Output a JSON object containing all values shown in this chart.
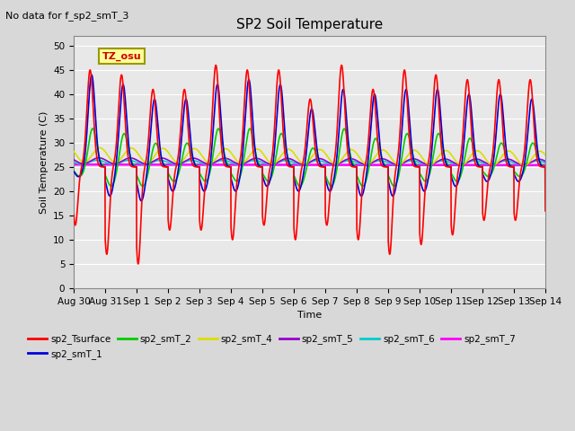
{
  "title": "SP2 Soil Temperature",
  "no_data_label": "No data for f_sp2_smT_3",
  "tz_label": "TZ_osu",
  "xlabel": "Time",
  "ylabel": "Soil Temperature (C)",
  "ylim": [
    0,
    52
  ],
  "yticks": [
    0,
    5,
    10,
    15,
    20,
    25,
    30,
    35,
    40,
    45,
    50
  ],
  "xlim": [
    0,
    15
  ],
  "colors": {
    "sp2_Tsurface": "#FF0000",
    "sp2_smT_1": "#0000DD",
    "sp2_smT_2": "#00CC00",
    "sp2_smT_4": "#DDDD00",
    "sp2_smT_5": "#9900CC",
    "sp2_smT_6": "#00CCCC",
    "sp2_smT_7": "#FF00FF"
  },
  "legend_order": [
    "sp2_Tsurface",
    "sp2_smT_1",
    "sp2_smT_2",
    "sp2_smT_4",
    "sp2_smT_5",
    "sp2_smT_6",
    "sp2_smT_7"
  ],
  "xtick_labels": [
    "Aug 30",
    "Aug 31",
    "Sep 1",
    "Sep 2",
    "Sep 3",
    "Sep 4",
    "Sep 5",
    "Sep 6",
    "Sep 7",
    "Sep 8",
    "Sep 9",
    "Sep 10",
    "Sep 11",
    "Sep 12",
    "Sep 13",
    "Sep 14"
  ],
  "bg_color": "#E0E0E0",
  "plot_bg_color": "#E8E8E8",
  "figsize": [
    6.4,
    4.8
  ],
  "dpi": 100
}
